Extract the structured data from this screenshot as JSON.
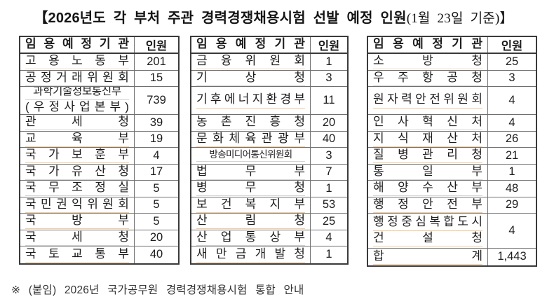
{
  "page": {
    "title_main": "【2026년도 각 부처 주관 경력경쟁채용시험 선발 예정 인원",
    "title_suffix": "(1월 23일 기준)】",
    "footnote": "※ (붙임) 2026년 국가공무원 경력경쟁채용시험 통합 안내"
  },
  "table_header": {
    "agency": "임용예정기관",
    "count": "인원"
  },
  "colors": {
    "border_dark": "#3a3a3a",
    "border_light": "#6f6f6f",
    "text": "#1c1c1c",
    "agency_underline": "#cba06e",
    "background": "#ffffff"
  },
  "tables": [
    {
      "rows": [
        {
          "agency": "고용노동부",
          "count": "201"
        },
        {
          "agency": "공정거래위원회",
          "count": "15"
        },
        {
          "lines": [
            "과학기술정보통신부",
            "(우정사업본부)"
          ],
          "count": "739",
          "tall": true
        },
        {
          "agency": "관세청",
          "count": "39"
        },
        {
          "agency": "교육부",
          "count": "19"
        },
        {
          "agency": "국가보훈부",
          "count": "4"
        },
        {
          "agency": "국가유산청",
          "count": "17"
        },
        {
          "agency": "국무조정실",
          "count": "5"
        },
        {
          "agency": "국민권익위원회",
          "count": "5"
        },
        {
          "agency": "국방부",
          "count": "5"
        },
        {
          "agency": "국세청",
          "count": "20"
        },
        {
          "agency": "국토교통부",
          "count": "40"
        }
      ]
    },
    {
      "rows": [
        {
          "agency": "금융위원회",
          "count": "1"
        },
        {
          "agency": "기상청",
          "count": "3"
        },
        {
          "agency": "기후에너지환경부",
          "count": "11",
          "tall": true
        },
        {
          "agency": "농촌진흥청",
          "count": "20"
        },
        {
          "agency": "문화체육관광부",
          "count": "40"
        },
        {
          "agency": "방송미디어통신위원회",
          "count": "3"
        },
        {
          "agency": "법무부",
          "count": "7"
        },
        {
          "agency": "병무청",
          "count": "1"
        },
        {
          "agency": "보건복지부",
          "count": "53"
        },
        {
          "agency": "산림청",
          "count": "25"
        },
        {
          "agency": "산업통상부",
          "count": "4"
        },
        {
          "agency": "새만금개발청",
          "count": "1"
        }
      ]
    },
    {
      "rows": [
        {
          "agency": "소방청",
          "count": "25"
        },
        {
          "agency": "우주항공청",
          "count": "3"
        },
        {
          "agency": "원자력안전위원회",
          "count": "4",
          "tall": true
        },
        {
          "agency": "인사혁신처",
          "count": "4"
        },
        {
          "agency": "지식재산처",
          "count": "26"
        },
        {
          "agency": "질병관리청",
          "count": "21"
        },
        {
          "agency": "통일부",
          "count": "1"
        },
        {
          "agency": "해양수산부",
          "count": "48"
        },
        {
          "agency": "행정안전부",
          "count": "29"
        },
        {
          "lines": [
            "행정중심복합도시",
            "건설청"
          ],
          "count": "4",
          "tall": true
        },
        {
          "agency": "합계",
          "count": "1,443",
          "total": true
        }
      ]
    }
  ]
}
